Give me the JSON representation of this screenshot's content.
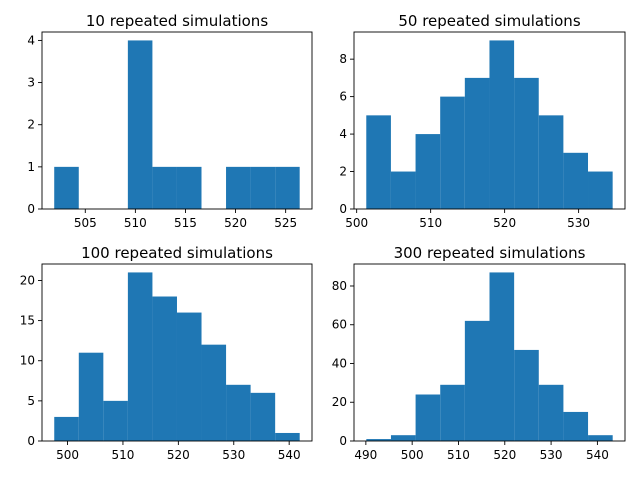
{
  "chart_data": [
    {
      "type": "bar",
      "title": "10 repeated simulations",
      "bar_color": "#1f77b4",
      "bins": [
        {
          "x0": 501.9,
          "x1": 504.35,
          "count": 1
        },
        {
          "x0": 504.35,
          "x1": 506.8,
          "count": 0
        },
        {
          "x0": 506.8,
          "x1": 509.25,
          "count": 0
        },
        {
          "x0": 509.25,
          "x1": 511.7,
          "count": 4
        },
        {
          "x0": 511.7,
          "x1": 514.15,
          "count": 1
        },
        {
          "x0": 514.15,
          "x1": 516.6,
          "count": 1
        },
        {
          "x0": 516.6,
          "x1": 519.05,
          "count": 0
        },
        {
          "x0": 519.05,
          "x1": 521.5,
          "count": 1
        },
        {
          "x0": 521.5,
          "x1": 523.95,
          "count": 1
        },
        {
          "x0": 523.95,
          "x1": 526.4,
          "count": 1
        }
      ],
      "xlim": [
        500.68,
        527.63
      ],
      "ylim": [
        0,
        4.2
      ],
      "xticks": [
        505,
        510,
        515,
        520,
        525
      ],
      "yticks": [
        0,
        1,
        2,
        3,
        4
      ]
    },
    {
      "type": "bar",
      "title": "50 repeated simulations",
      "bar_color": "#1f77b4",
      "bins": [
        {
          "x0": 501.3,
          "x1": 504.63,
          "count": 5
        },
        {
          "x0": 504.63,
          "x1": 507.96,
          "count": 2
        },
        {
          "x0": 507.96,
          "x1": 511.29,
          "count": 4
        },
        {
          "x0": 511.29,
          "x1": 514.62,
          "count": 6
        },
        {
          "x0": 514.62,
          "x1": 517.95,
          "count": 7
        },
        {
          "x0": 517.95,
          "x1": 521.28,
          "count": 9
        },
        {
          "x0": 521.28,
          "x1": 524.61,
          "count": 7
        },
        {
          "x0": 524.61,
          "x1": 527.94,
          "count": 5
        },
        {
          "x0": 527.94,
          "x1": 531.27,
          "count": 3
        },
        {
          "x0": 531.27,
          "x1": 534.6,
          "count": 2
        }
      ],
      "xlim": [
        499.64,
        536.27
      ],
      "ylim": [
        0,
        9.45
      ],
      "xticks": [
        500,
        510,
        520,
        530
      ],
      "yticks": [
        0,
        2,
        4,
        6,
        8
      ]
    },
    {
      "type": "bar",
      "title": "100 repeated simulations",
      "bar_color": "#1f77b4",
      "bins": [
        {
          "x0": 497.6,
          "x1": 502.03,
          "count": 3
        },
        {
          "x0": 502.03,
          "x1": 506.46,
          "count": 11
        },
        {
          "x0": 506.46,
          "x1": 510.89,
          "count": 5
        },
        {
          "x0": 510.89,
          "x1": 515.32,
          "count": 21
        },
        {
          "x0": 515.32,
          "x1": 519.75,
          "count": 18
        },
        {
          "x0": 519.75,
          "x1": 524.18,
          "count": 16
        },
        {
          "x0": 524.18,
          "x1": 528.61,
          "count": 12
        },
        {
          "x0": 528.61,
          "x1": 533.04,
          "count": 7
        },
        {
          "x0": 533.04,
          "x1": 537.47,
          "count": 6
        },
        {
          "x0": 537.47,
          "x1": 541.9,
          "count": 1
        }
      ],
      "xlim": [
        495.39,
        544.12
      ],
      "ylim": [
        0,
        22.05
      ],
      "xticks": [
        500,
        510,
        520,
        530,
        540
      ],
      "yticks": [
        0,
        5,
        10,
        15,
        20
      ]
    },
    {
      "type": "bar",
      "title": "300 repeated simulations",
      "bar_color": "#1f77b4",
      "bins": [
        {
          "x0": 490.1,
          "x1": 495.42,
          "count": 1
        },
        {
          "x0": 495.42,
          "x1": 500.74,
          "count": 3
        },
        {
          "x0": 500.74,
          "x1": 506.06,
          "count": 24
        },
        {
          "x0": 506.06,
          "x1": 511.38,
          "count": 29
        },
        {
          "x0": 511.38,
          "x1": 516.7,
          "count": 62
        },
        {
          "x0": 516.7,
          "x1": 522.02,
          "count": 87
        },
        {
          "x0": 522.02,
          "x1": 527.34,
          "count": 47
        },
        {
          "x0": 527.34,
          "x1": 532.66,
          "count": 29
        },
        {
          "x0": 532.66,
          "x1": 537.98,
          "count": 15
        },
        {
          "x0": 537.98,
          "x1": 543.3,
          "count": 3
        }
      ],
      "xlim": [
        487.44,
        545.96
      ],
      "ylim": [
        0,
        91.35
      ],
      "xticks": [
        490,
        500,
        510,
        520,
        530,
        540
      ],
      "yticks": [
        0,
        20,
        40,
        60,
        80
      ]
    }
  ]
}
